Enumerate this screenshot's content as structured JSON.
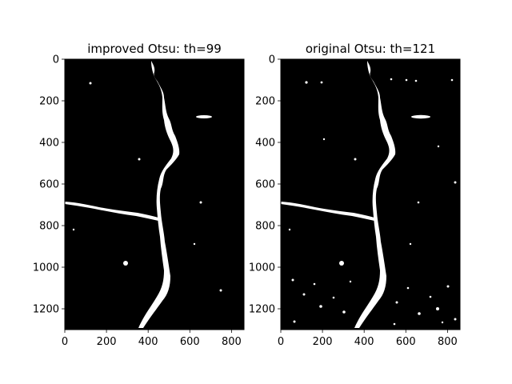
{
  "figure": {
    "background": "#ffffff",
    "panels": [
      {
        "title": "improved Otsu: th=99",
        "image_kind": "binary crack segmentation mask",
        "image_width": 860,
        "image_height": 1300,
        "background_color": "#000000",
        "foreground_color": "#ffffff",
        "x_ticks": [
          0,
          200,
          400,
          600,
          800
        ],
        "y_ticks": [
          0,
          200,
          400,
          600,
          800,
          1000,
          1200
        ]
      },
      {
        "title": "original Otsu: th=121",
        "image_kind": "binary crack segmentation mask",
        "image_width": 860,
        "image_height": 1300,
        "background_color": "#000000",
        "foreground_color": "#ffffff",
        "x_ticks": [
          0,
          200,
          400,
          600,
          800
        ],
        "y_ticks": [
          0,
          200,
          400,
          600,
          800,
          1000,
          1200
        ]
      }
    ]
  }
}
